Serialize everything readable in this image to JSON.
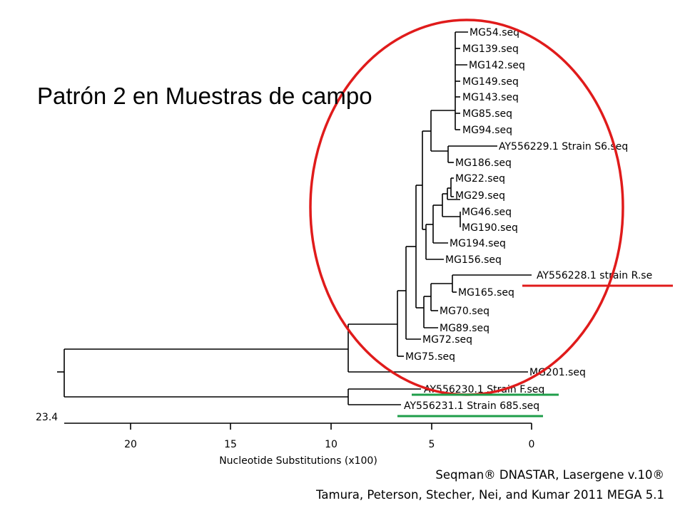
{
  "title": "Patrón 2 en Muestras de campo",
  "leaves": [
    "MG54.seq",
    "MG139.seq",
    "MG142.seq",
    "MG149.seq",
    "MG143.seq",
    "MG85.seq",
    "MG94.seq",
    "AY556229.1 Strain S6.seq",
    "MG186.seq",
    "MG22.seq",
    "MG29.seq",
    "MG46.seq",
    "MG190.seq",
    "MG194.seq",
    "MG156.seq",
    "AY556228.1 strain R.se",
    "MG165.seq",
    "MG70.seq",
    "MG89.seq",
    "MG72.seq",
    "MG75.seq",
    "MG201.seq",
    "AY556230.1 Strain F.seq",
    "AY556231.1 Strain 685.seq"
  ],
  "root_label": "23.4",
  "axis": {
    "label": "Nucleotide Substitutions (x100)",
    "ticks": [
      "20",
      "15",
      "10",
      "5",
      "0"
    ]
  },
  "credits": {
    "software": "Seqman® DNASTAR, Lasergene v.10®",
    "reference": "Tamura, Peterson, Stecher, Nei, and Kumar 2011 MEGA 5.1"
  },
  "colors": {
    "highlight_ellipse": "#e01b1b",
    "red_underline": "#e01b1b",
    "green_underline": "#1f9e4a"
  }
}
